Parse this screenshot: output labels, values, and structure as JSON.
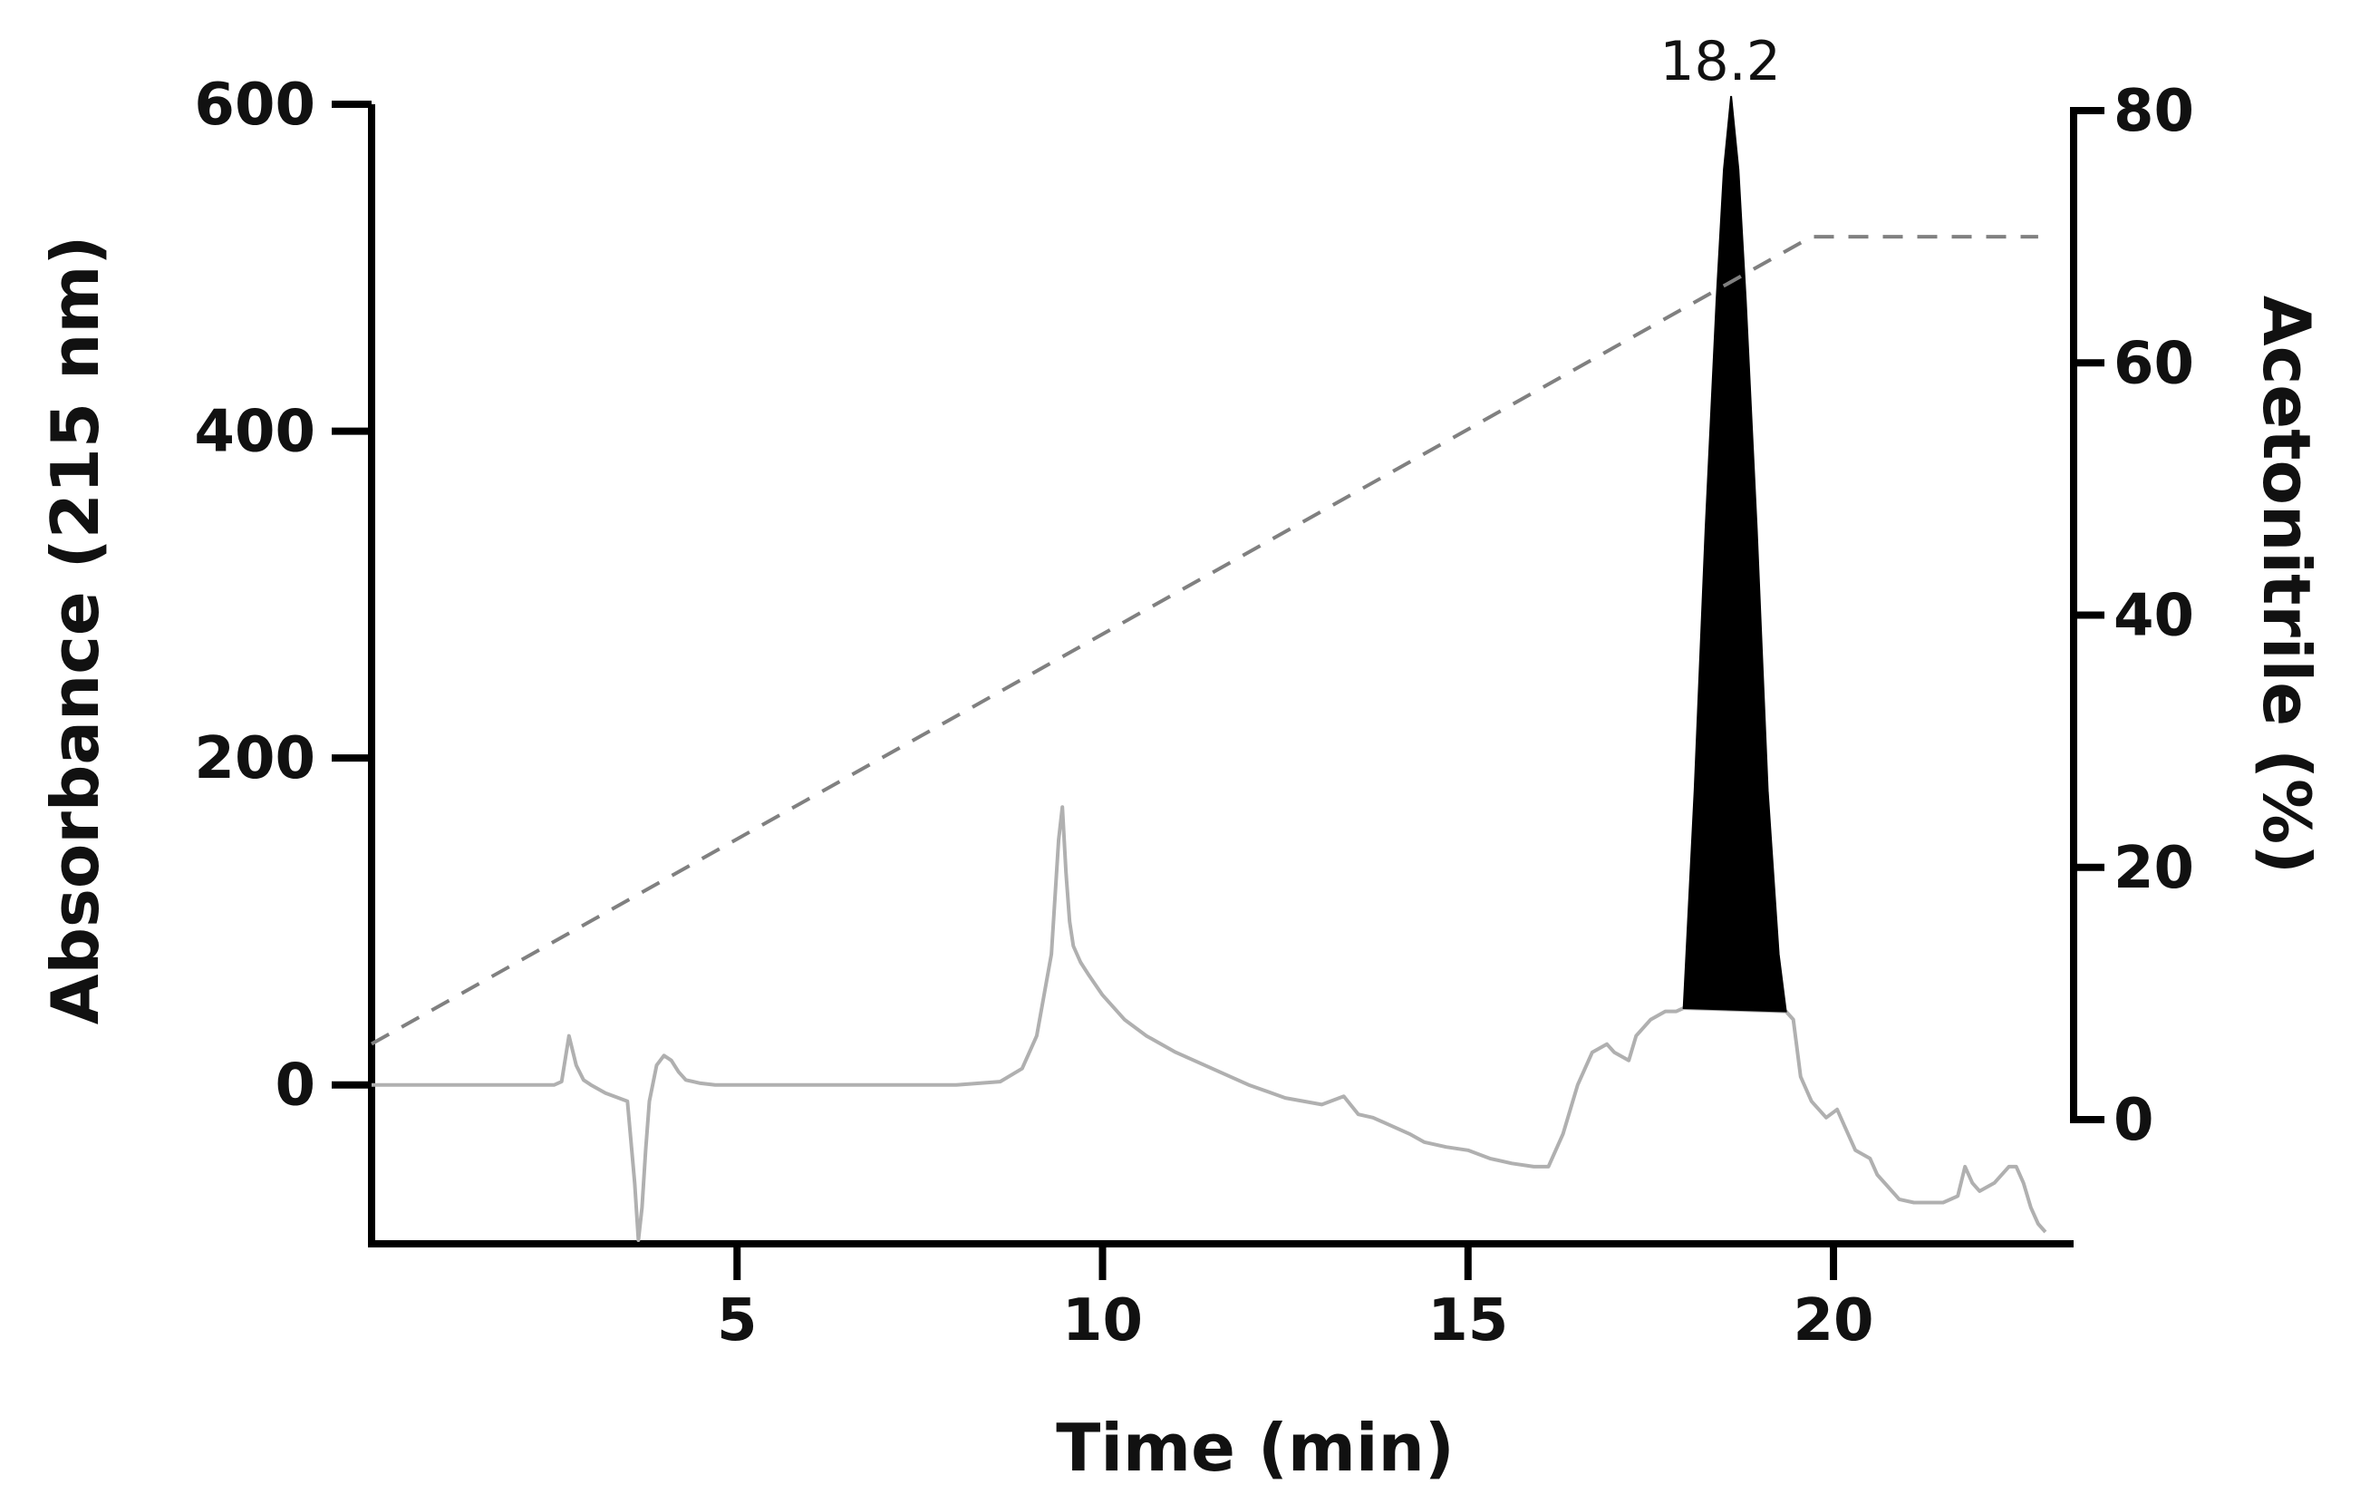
{
  "chart_data": {
    "type": "line",
    "xlabel": "Time (min)",
    "ylabel": "Absorbance (215 nm)",
    "y2label": "Acetonitrile (%)",
    "xlim": [
      0,
      23
    ],
    "ylim": [
      -95,
      600
    ],
    "y2lim": [
      -4.5,
      80
    ],
    "x_ticks": [
      5,
      10,
      15,
      20
    ],
    "y_ticks": [
      0,
      200,
      400,
      600
    ],
    "y2_ticks": [
      0,
      20,
      40,
      60,
      80
    ],
    "grid": false,
    "annotations": [
      {
        "text": "18.2",
        "x": 18.6,
        "y": 600
      }
    ],
    "series": [
      {
        "axis": "y",
        "style": "solid-gray",
        "x": [
          0,
          2.5,
          2.6,
          2.7,
          2.8,
          2.9,
          3.0,
          3.2,
          3.5,
          3.6,
          3.65,
          3.7,
          3.75,
          3.8,
          3.9,
          4.0,
          4.1,
          4.2,
          4.3,
          4.5,
          4.7,
          5.0,
          6.0,
          7.0,
          8.0,
          8.6,
          8.9,
          9.1,
          9.3,
          9.4,
          9.45,
          9.5,
          9.55,
          9.6,
          9.7,
          9.8,
          10.0,
          10.3,
          10.6,
          11.0,
          11.5,
          12.0,
          12.5,
          13.0,
          13.3,
          13.5,
          13.7,
          14.0,
          14.2,
          14.4,
          14.7,
          15.0,
          15.3,
          15.6,
          15.9,
          16.1,
          16.3,
          16.5,
          16.7,
          16.9,
          17.0,
          17.2,
          17.3,
          17.5,
          17.7,
          17.85,
          17.95,
          19.35,
          19.45,
          19.55,
          19.7,
          19.9,
          20.05,
          20.15,
          20.3,
          20.5,
          20.6,
          20.7,
          20.9,
          21.1,
          21.3,
          21.5,
          21.7,
          21.8,
          21.9,
          22.0,
          22.2,
          22.4,
          22.5,
          22.6,
          22.7,
          22.8,
          22.9
        ],
        "y": [
          0,
          0,
          2,
          30,
          12,
          3,
          0,
          -5,
          -10,
          -60,
          -95,
          -75,
          -40,
          -10,
          12,
          18,
          15,
          8,
          3,
          1,
          0,
          0,
          0,
          0,
          0,
          2,
          10,
          30,
          80,
          150,
          170,
          130,
          100,
          85,
          75,
          68,
          55,
          40,
          30,
          20,
          10,
          0,
          -8,
          -12,
          -7,
          -18,
          -20,
          -26,
          -30,
          -35,
          -38,
          -40,
          -45,
          -48,
          -50,
          -50,
          -30,
          0,
          20,
          25,
          20,
          15,
          30,
          40,
          45,
          45,
          47,
          45,
          40,
          5,
          -10,
          -20,
          -15,
          -25,
          -40,
          -45,
          -55,
          -60,
          -70,
          -72,
          -72,
          -72,
          -68,
          -50,
          -60,
          -65,
          -60,
          -50,
          -50,
          -60,
          -75,
          -85,
          -90
        ]
      },
      {
        "axis": "y",
        "style": "filled-black",
        "x": [
          17.95,
          18.1,
          18.25,
          18.4,
          18.5,
          18.6,
          18.7,
          18.8,
          18.95,
          19.1,
          19.25,
          19.35
        ],
        "y": [
          47,
          180,
          340,
          480,
          560,
          605,
          560,
          480,
          340,
          180,
          80,
          45
        ]
      },
      {
        "axis": "y2",
        "style": "dashed-gray",
        "x": [
          0,
          19.7,
          22.8
        ],
        "y": [
          6,
          70,
          70
        ]
      }
    ]
  }
}
